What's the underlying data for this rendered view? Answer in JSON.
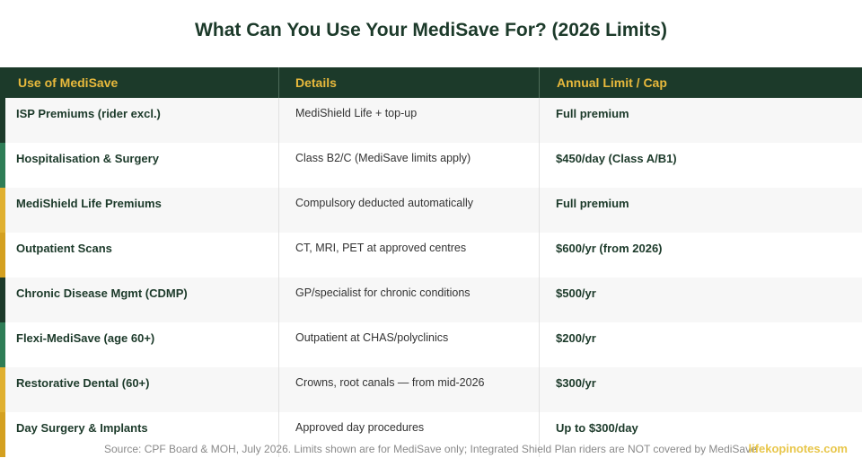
{
  "title": "What Can You Use Your MediSave For? (2026 Limits)",
  "headers": [
    "Use of MediSave",
    "Details",
    "Annual Limit / Cap"
  ],
  "rows": [
    {
      "use": "ISP Premiums (rider excl.)",
      "details": "MediShield Life + top-up",
      "limit": "Full premium",
      "accent": "#1c3a2a"
    },
    {
      "use": "Hospitalisation & Surgery",
      "details": "Class B2/C (MediSave limits apply)",
      "limit": "$450/day (Class A/B1)",
      "accent": "#2e7d56"
    },
    {
      "use": "MediShield Life Premiums",
      "details": "Compulsory deducted automatically",
      "limit": "Full premium",
      "accent": "#e0b030"
    },
    {
      "use": "Outpatient Scans",
      "details": "CT, MRI, PET at approved centres",
      "limit": "$600/yr (from 2026)",
      "accent": "#d4a020"
    },
    {
      "use": "Chronic Disease Mgmt (CDMP)",
      "details": "GP/specialist for chronic conditions",
      "limit": "$500/yr",
      "accent": "#1c3a2a"
    },
    {
      "use": "Flexi-MediSave (age 60+)",
      "details": "Outpatient at CHAS/polyclinics",
      "limit": "$200/yr",
      "accent": "#2e7d56"
    },
    {
      "use": "Restorative Dental (60+)",
      "details": "Crowns, root canals — from mid-2026",
      "limit": "$300/yr",
      "accent": "#e0b030"
    },
    {
      "use": "Day Surgery & Implants",
      "details": "Approved day procedures",
      "limit": "Up to $300/day",
      "accent": "#d4a020"
    }
  ],
  "footer": {
    "source": "Source: CPF Board & MOH, July 2026. Limits shown are for MediSave only; Integrated Shield Plan riders are NOT covered by MediSave",
    "brand": "lifekopinotes.com"
  }
}
